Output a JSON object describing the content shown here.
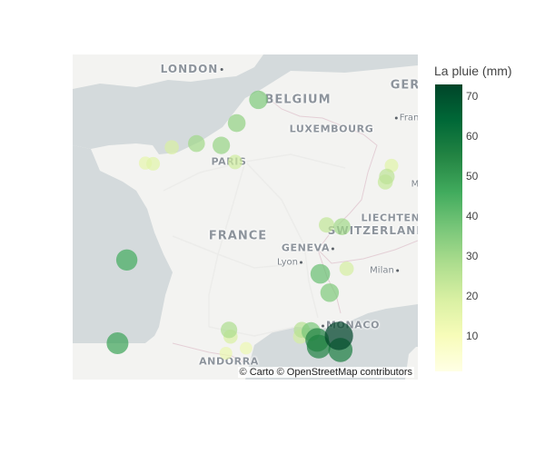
{
  "colorbar": {
    "title": "La pluie (mm)",
    "min": 1,
    "max": 73,
    "ticks": [
      10,
      20,
      30,
      40,
      50,
      60,
      70
    ],
    "colorscale": [
      "#ffffe5",
      "#f7fcb9",
      "#d9f0a3",
      "#addd8e",
      "#78c679",
      "#41ab5d",
      "#238443",
      "#006837",
      "#004529"
    ]
  },
  "map": {
    "attribution": "© Carto © OpenStreetMap contributors",
    "labels": {
      "london": "LONDON",
      "belgium": "BELGIUM",
      "germany": "GER",
      "frankfurt": "Frank",
      "luxembourg": "LUXEMBOURG",
      "paris": "PARIS",
      "france": "FRANCE",
      "liechtenstein": "LIECHTEN",
      "switzerland": "SWITZERLAND",
      "geneva": "GENEVA",
      "lyon": "Lyon",
      "milan": "Milan",
      "monaco": "MONACO",
      "andorra": "ANDORRA",
      "misc_m": "M"
    },
    "stations": [
      {
        "lon": 3.1,
        "lat": 50.57,
        "rain": 36
      },
      {
        "lon": 2.4,
        "lat": 49.95,
        "rain": 33
      },
      {
        "lon": 1.1,
        "lat": 49.4,
        "rain": 30
      },
      {
        "lon": 1.9,
        "lat": 49.35,
        "rain": 32
      },
      {
        "lon": 0.3,
        "lat": 49.3,
        "rain": 19
      },
      {
        "lon": 2.35,
        "lat": 48.9,
        "rain": 21
      },
      {
        "lon": -0.55,
        "lat": 48.87,
        "rain": 15
      },
      {
        "lon": -0.3,
        "lat": 48.85,
        "rain": 17
      },
      {
        "lon": 7.4,
        "lat": 48.8,
        "rain": 17
      },
      {
        "lon": 7.25,
        "lat": 48.5,
        "rain": 25
      },
      {
        "lon": 7.2,
        "lat": 48.35,
        "rain": 23
      },
      {
        "lon": 5.3,
        "lat": 47.15,
        "rain": 24
      },
      {
        "lon": 5.8,
        "lat": 47.1,
        "rain": 30
      },
      {
        "lon": -1.15,
        "lat": 46.15,
        "rain": 46
      },
      {
        "lon": 5.95,
        "lat": 45.9,
        "rain": 20
      },
      {
        "lon": 5.1,
        "lat": 45.75,
        "rain": 40
      },
      {
        "lon": 5.4,
        "lat": 45.2,
        "rain": 36
      },
      {
        "lon": 2.15,
        "lat": 44.1,
        "rain": 28
      },
      {
        "lon": 2.2,
        "lat": 43.9,
        "rain": 19
      },
      {
        "lon": 4.5,
        "lat": 44.1,
        "rain": 26
      },
      {
        "lon": 4.8,
        "lat": 44.05,
        "rain": 37
      },
      {
        "lon": 4.45,
        "lat": 43.9,
        "rain": 20
      },
      {
        "lon": -1.45,
        "lat": 43.7,
        "rain": 48
      },
      {
        "lon": 2.7,
        "lat": 43.55,
        "rain": 13
      },
      {
        "lon": 2.05,
        "lat": 43.4,
        "rain": 14
      },
      {
        "lon": 5.0,
        "lat": 43.8,
        "rain": 55
      },
      {
        "lon": 5.7,
        "lat": 43.92,
        "rain": 73
      },
      {
        "lon": 5.05,
        "lat": 43.6,
        "rain": 56
      },
      {
        "lon": 5.75,
        "lat": 43.5,
        "rain": 57
      }
    ]
  }
}
